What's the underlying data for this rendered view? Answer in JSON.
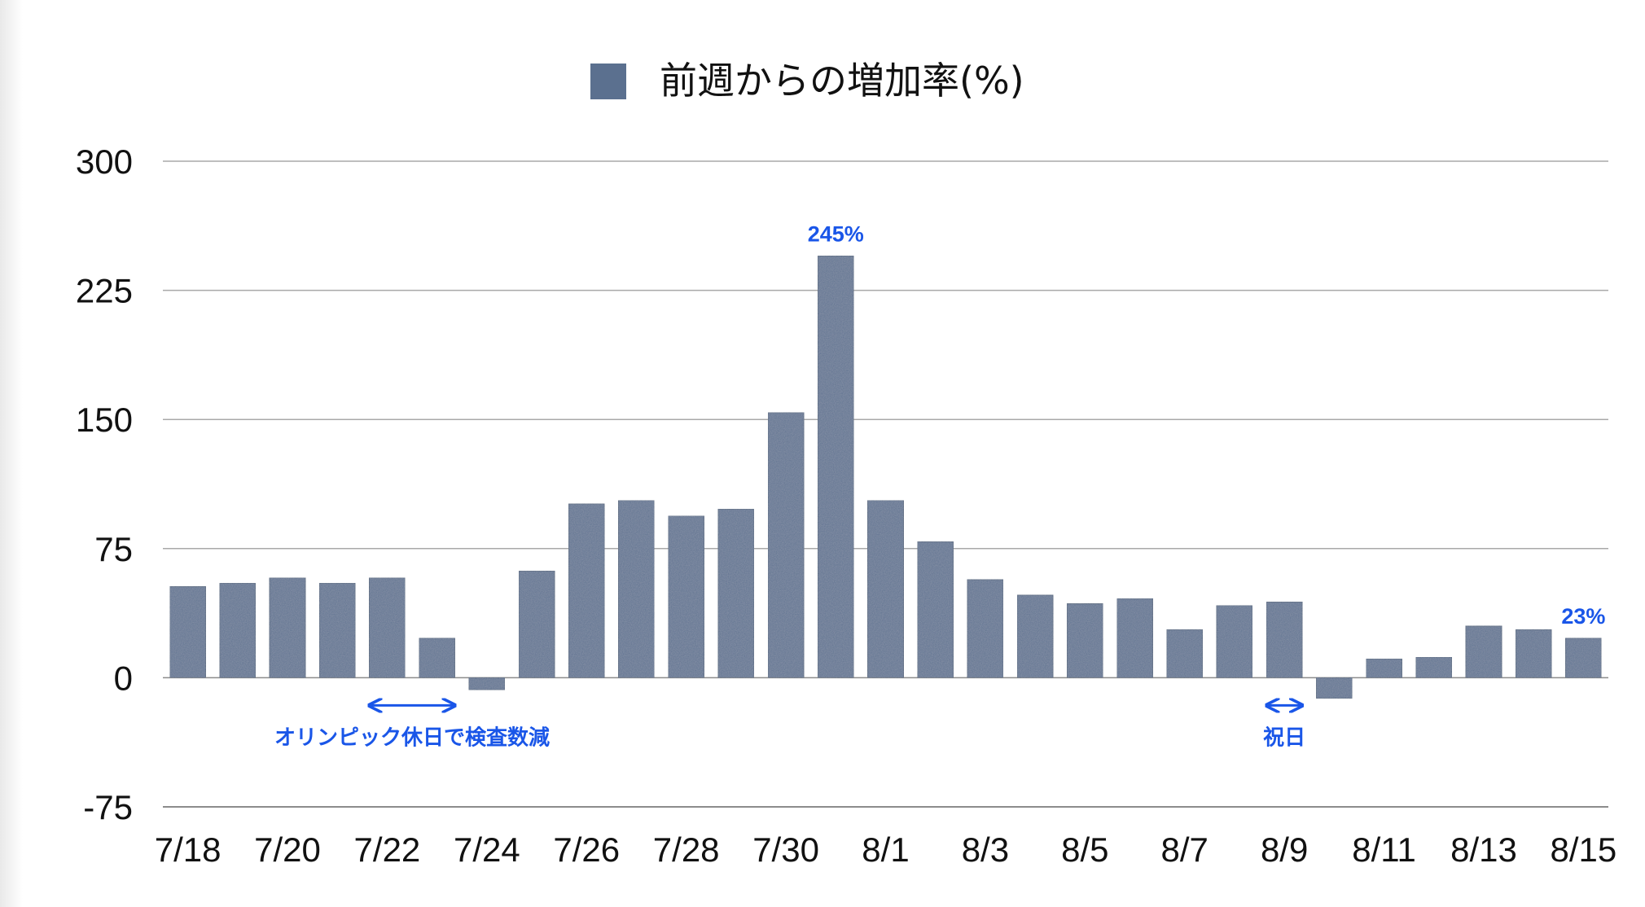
{
  "chart_data": {
    "type": "bar",
    "legend": {
      "label": "前週からの増加率(%)",
      "color": "#5b708f",
      "placement": "top"
    },
    "ylim": [
      -75,
      300
    ],
    "yticks": [
      300,
      225,
      150,
      75,
      0,
      -75
    ],
    "ytick_labels": [
      "300",
      "225",
      "150",
      "75",
      "0",
      "-75"
    ],
    "categories": [
      "7/18",
      "7/19",
      "7/20",
      "7/21",
      "7/22",
      "7/23",
      "7/24",
      "7/25",
      "7/26",
      "7/27",
      "7/28",
      "7/29",
      "7/30",
      "7/31",
      "8/1",
      "8/2",
      "8/3",
      "8/4",
      "8/5",
      "8/6",
      "8/7",
      "8/8",
      "8/9",
      "8/10",
      "8/11",
      "8/12",
      "8/13",
      "8/14",
      "8/15"
    ],
    "xtick_labels": [
      "7/18",
      "7/20",
      "7/22",
      "7/24",
      "7/26",
      "7/28",
      "7/30",
      "8/1",
      "8/3",
      "8/5",
      "8/7",
      "8/9",
      "8/11",
      "8/13",
      "8/15"
    ],
    "values": [
      53,
      55,
      58,
      55,
      58,
      23,
      -7,
      62,
      101,
      103,
      94,
      98,
      154,
      245,
      103,
      79,
      57,
      48,
      43,
      46,
      28,
      42,
      44,
      -12,
      11,
      12,
      30,
      28,
      23
    ],
    "data_labels": [
      {
        "index": 13,
        "text": "245%"
      },
      {
        "index": 28,
        "text": "23%"
      }
    ],
    "annotations": [
      {
        "text": "オリンピック休日で検査数減",
        "from_index": 4,
        "to_index": 5
      },
      {
        "text": "祝日",
        "from_index": 22,
        "to_index": 22
      }
    ],
    "grid": true,
    "colors": {
      "bar": "#5b708f",
      "annotation": "#1a56e8",
      "grid": "#a9a9a9",
      "text": "#111111"
    }
  }
}
